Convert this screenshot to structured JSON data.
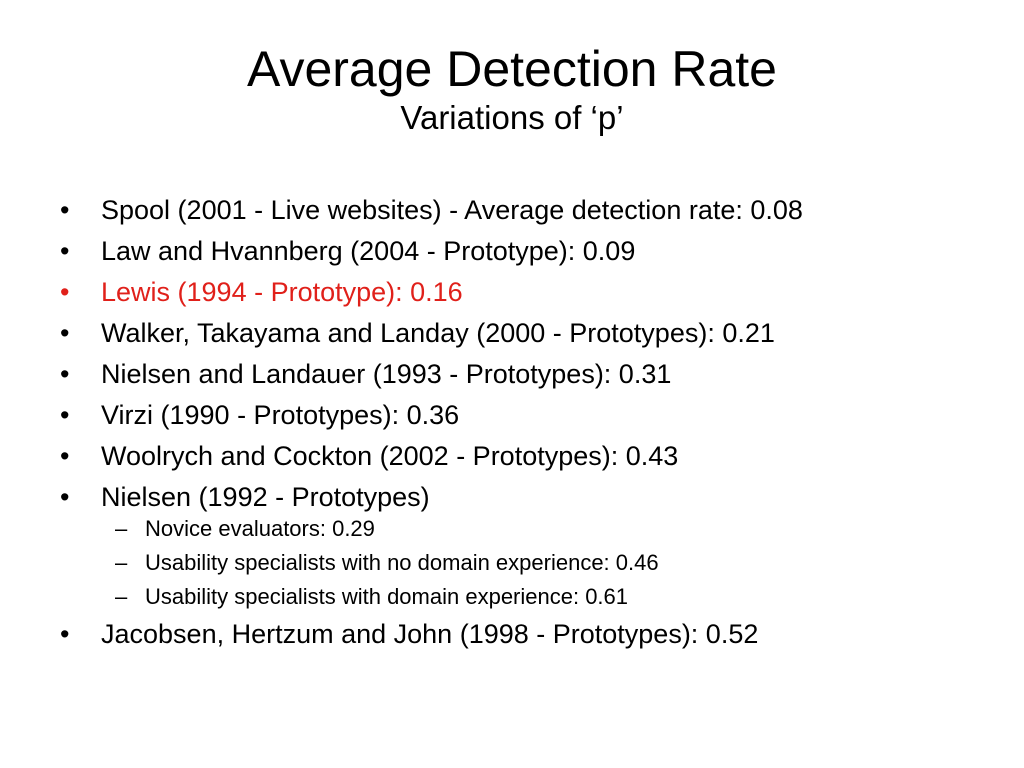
{
  "slide": {
    "title": "Average Detection Rate",
    "subtitle": "Variations of ‘p’",
    "bullet_mark": "•",
    "sub_mark": "–",
    "highlight_color": "#e0201a",
    "bullets": [
      {
        "text": "Spool (2001 - Live websites) - Average detection rate: 0.08"
      },
      {
        "text": "Law and Hvannberg (2004 - Prototype): 0.09"
      },
      {
        "text": "Lewis (1994 - Prototype): 0.16",
        "highlighted": true
      },
      {
        "text": "Walker, Takayama and Landay (2000 - Prototypes): 0.21"
      },
      {
        "text": "Nielsen and Landauer (1993 - Prototypes): 0.31"
      },
      {
        "text": "Virzi (1990 - Prototypes): 0.36"
      },
      {
        "text": "Woolrych and Cockton (2002 - Prototypes): 0.43"
      },
      {
        "text": "Nielsen (1992 - Prototypes)",
        "sub_items": [
          "Novice evaluators: 0.29",
          "Usability specialists with no domain experience: 0.46",
          "Usability specialists with domain experience: 0.61"
        ]
      },
      {
        "text": "Jacobsen, Hertzum and John (1998 - Prototypes): 0.52"
      }
    ]
  }
}
